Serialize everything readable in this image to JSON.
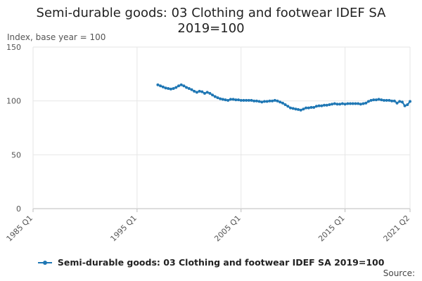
{
  "chart_data": {
    "type": "line",
    "title": "Semi-durable goods: 03 Clothing and footwear IDEF SA 2019=100",
    "title_lines": [
      "Semi-durable goods: 03 Clothing and footwear IDEF SA",
      "2019=100"
    ],
    "ylabel": "Index, base year = 100",
    "xlabel": "",
    "ylim": [
      0,
      150
    ],
    "y_ticks": [
      0,
      50,
      100,
      150
    ],
    "x_ticks": [
      "1985 Q1",
      "1995 Q1",
      "2005 Q1",
      "2015 Q1",
      "2021 Q2"
    ],
    "grid": true,
    "legend_position": "bottom",
    "source_label": "Source:",
    "series": [
      {
        "name": "Semi-durable goods: 03 Clothing and footwear IDEF SA 2019=100",
        "color": "#1f77b4",
        "points": [
          [
            "1997 Q1",
            115.0
          ],
          [
            "1997 Q2",
            114.0
          ],
          [
            "1997 Q3",
            113.0
          ],
          [
            "1997 Q4",
            112.0
          ],
          [
            "1998 Q1",
            111.5
          ],
          [
            "1998 Q2",
            111.0
          ],
          [
            "1998 Q3",
            111.5
          ],
          [
            "1998 Q4",
            112.5
          ],
          [
            "1999 Q1",
            114.0
          ],
          [
            "1999 Q2",
            115.0
          ],
          [
            "1999 Q3",
            114.0
          ],
          [
            "1999 Q4",
            112.5
          ],
          [
            "2000 Q1",
            111.5
          ],
          [
            "2000 Q2",
            110.5
          ],
          [
            "2000 Q3",
            109.0
          ],
          [
            "2000 Q4",
            108.0
          ],
          [
            "2001 Q1",
            109.0
          ],
          [
            "2001 Q2",
            108.5
          ],
          [
            "2001 Q3",
            107.0
          ],
          [
            "2001 Q4",
            108.0
          ],
          [
            "2002 Q1",
            107.0
          ],
          [
            "2002 Q2",
            105.5
          ],
          [
            "2002 Q3",
            104.0
          ],
          [
            "2002 Q4",
            103.0
          ],
          [
            "2003 Q1",
            102.0
          ],
          [
            "2003 Q2",
            101.5
          ],
          [
            "2003 Q3",
            101.0
          ],
          [
            "2003 Q4",
            100.5
          ],
          [
            "2004 Q1",
            101.5
          ],
          [
            "2004 Q2",
            101.5
          ],
          [
            "2004 Q3",
            101.0
          ],
          [
            "2004 Q4",
            101.0
          ],
          [
            "2005 Q1",
            100.5
          ],
          [
            "2005 Q2",
            100.5
          ],
          [
            "2005 Q3",
            100.5
          ],
          [
            "2005 Q4",
            100.5
          ],
          [
            "2006 Q1",
            100.5
          ],
          [
            "2006 Q2",
            100.0
          ],
          [
            "2006 Q3",
            100.0
          ],
          [
            "2006 Q4",
            99.5
          ],
          [
            "2007 Q1",
            99.0
          ],
          [
            "2007 Q2",
            99.5
          ],
          [
            "2007 Q3",
            99.5
          ],
          [
            "2007 Q4",
            100.0
          ],
          [
            "2008 Q1",
            100.0
          ],
          [
            "2008 Q2",
            100.5
          ],
          [
            "2008 Q3",
            100.0
          ],
          [
            "2008 Q4",
            99.0
          ],
          [
            "2009 Q1",
            98.0
          ],
          [
            "2009 Q2",
            96.5
          ],
          [
            "2009 Q3",
            95.0
          ],
          [
            "2009 Q4",
            93.5
          ],
          [
            "2010 Q1",
            93.0
          ],
          [
            "2010 Q2",
            92.5
          ],
          [
            "2010 Q3",
            92.0
          ],
          [
            "2010 Q4",
            91.5
          ],
          [
            "2011 Q1",
            92.5
          ],
          [
            "2011 Q2",
            93.5
          ],
          [
            "2011 Q3",
            93.5
          ],
          [
            "2011 Q4",
            94.0
          ],
          [
            "2012 Q1",
            94.0
          ],
          [
            "2012 Q2",
            95.0
          ],
          [
            "2012 Q3",
            95.5
          ],
          [
            "2012 Q4",
            95.5
          ],
          [
            "2013 Q1",
            96.0
          ],
          [
            "2013 Q2",
            96.0
          ],
          [
            "2013 Q3",
            96.5
          ],
          [
            "2013 Q4",
            97.0
          ],
          [
            "2014 Q1",
            97.5
          ],
          [
            "2014 Q2",
            97.0
          ],
          [
            "2014 Q3",
            97.0
          ],
          [
            "2014 Q4",
            97.5
          ],
          [
            "2015 Q1",
            97.0
          ],
          [
            "2015 Q2",
            97.5
          ],
          [
            "2015 Q3",
            97.5
          ],
          [
            "2015 Q4",
            97.5
          ],
          [
            "2016 Q1",
            97.5
          ],
          [
            "2016 Q2",
            97.5
          ],
          [
            "2016 Q3",
            97.0
          ],
          [
            "2016 Q4",
            97.5
          ],
          [
            "2017 Q1",
            98.0
          ],
          [
            "2017 Q2",
            99.5
          ],
          [
            "2017 Q3",
            100.5
          ],
          [
            "2017 Q4",
            101.0
          ],
          [
            "2018 Q1",
            101.0
          ],
          [
            "2018 Q2",
            101.5
          ],
          [
            "2018 Q3",
            101.0
          ],
          [
            "2018 Q4",
            100.5
          ],
          [
            "2019 Q1",
            100.5
          ],
          [
            "2019 Q2",
            100.5
          ],
          [
            "2019 Q3",
            100.0
          ],
          [
            "2019 Q4",
            100.0
          ],
          [
            "2020 Q1",
            98.0
          ],
          [
            "2020 Q2",
            99.5
          ],
          [
            "2020 Q3",
            99.0
          ],
          [
            "2020 Q4",
            95.5
          ],
          [
            "2021 Q1",
            96.5
          ],
          [
            "2021 Q2",
            99.5
          ]
        ]
      }
    ]
  }
}
